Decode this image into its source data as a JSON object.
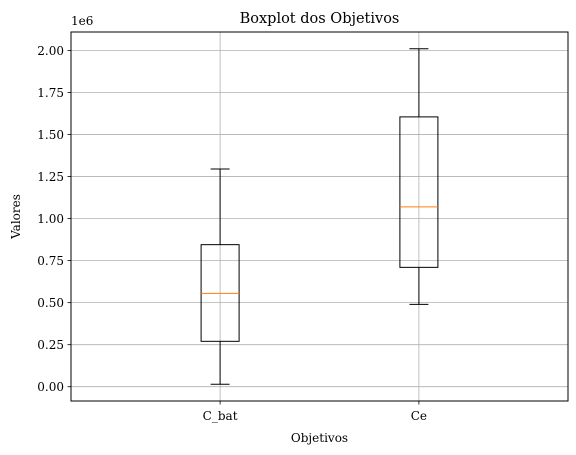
{
  "chart_data": {
    "type": "box",
    "title": "Boxplot dos Objetivos",
    "xlabel": "Objetivos",
    "ylabel": "Valores",
    "offset_label": "1e6",
    "categories": [
      "C_bat",
      "Ce"
    ],
    "boxes": [
      {
        "name": "C_bat",
        "min": 0.015,
        "q1": 0.27,
        "median": 0.555,
        "q3": 0.845,
        "max": 1.295
      },
      {
        "name": "Ce",
        "min": 0.49,
        "q1": 0.71,
        "median": 1.07,
        "q3": 1.605,
        "max": 2.01
      }
    ],
    "ylim": [
      -0.085,
      2.11
    ],
    "yticks": [
      0.0,
      0.25,
      0.5,
      0.75,
      1.0,
      1.25,
      1.5,
      1.75,
      2.0
    ],
    "ytick_labels": [
      "0.00",
      "0.25",
      "0.50",
      "0.75",
      "1.00",
      "1.25",
      "1.50",
      "1.75",
      "2.00"
    ],
    "grid": true,
    "colors": {
      "box": "#000000",
      "median": "#ff7f0e",
      "grid": "#b0b0b0"
    }
  }
}
